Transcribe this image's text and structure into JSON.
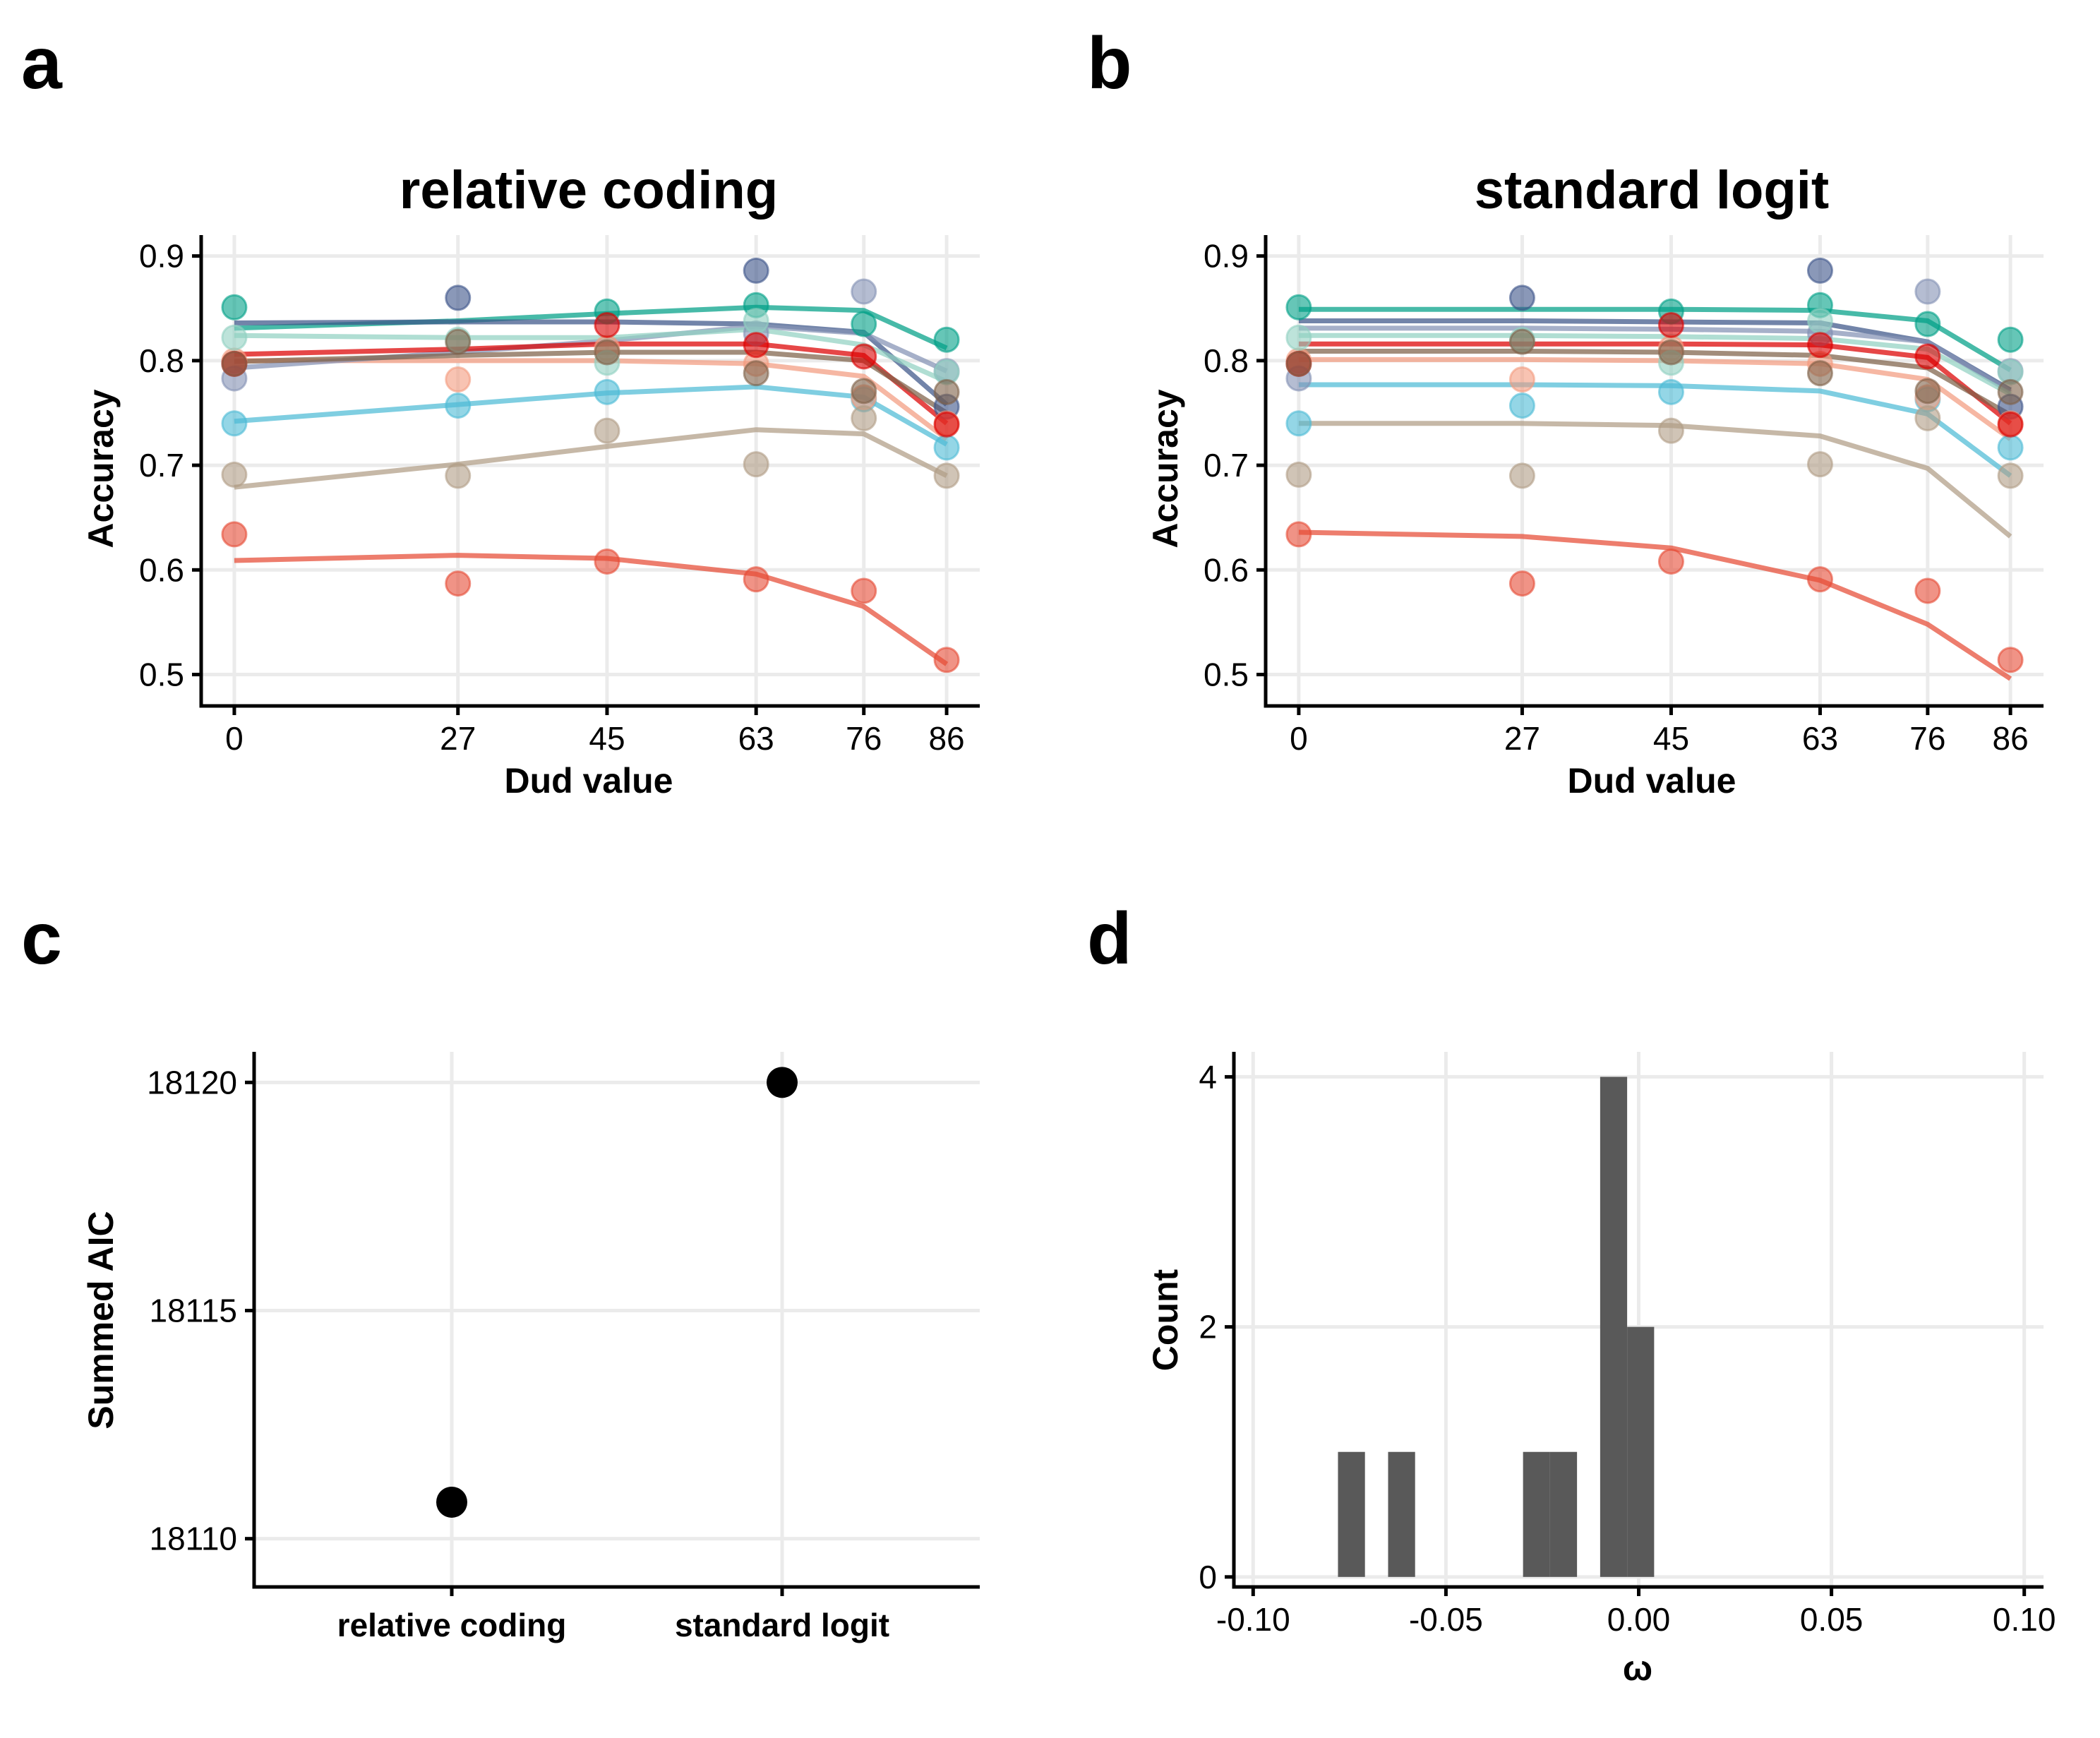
{
  "panels": {
    "a": {
      "letter": "a",
      "title": "relative coding",
      "xlabel": "Dud value",
      "ylabel": "Accuracy"
    },
    "b": {
      "letter": "b",
      "title": "standard logit",
      "xlabel": "Dud value",
      "ylabel": "Accuracy"
    },
    "c": {
      "letter": "c",
      "title": "",
      "xlabel": "",
      "ylabel": "Summed AIC"
    },
    "d": {
      "letter": "d",
      "title": "",
      "xlabel": "ω",
      "ylabel": "Count"
    }
  },
  "chart_data": [
    {
      "id": "a",
      "type": "scatter",
      "title": "relative coding",
      "xlabel": "Dud value",
      "ylabel": "Accuracy",
      "x": [
        0,
        27,
        45,
        63,
        76,
        86
      ],
      "xticks": [
        0,
        27,
        45,
        63,
        76,
        86
      ],
      "xlim": [
        -4,
        90
      ],
      "ylim": [
        0.47,
        0.92
      ],
      "yticks": [
        0.5,
        0.6,
        0.7,
        0.8,
        0.9
      ],
      "ytick_labels": [
        "0.5",
        "0.6",
        "0.7",
        "0.8",
        "0.9"
      ],
      "grid": true,
      "series": [
        {
          "color": "#E64B35",
          "points": [
            0.634,
            0.587,
            0.608,
            0.591,
            0.58,
            0.514
          ],
          "fit": [
            0.609,
            0.614,
            0.611,
            0.596,
            0.565,
            0.51
          ]
        },
        {
          "color": "#4DBBD5",
          "points": [
            0.74,
            0.757,
            0.77,
            null,
            0.763,
            0.717
          ],
          "fit": [
            0.742,
            0.758,
            0.769,
            0.775,
            0.765,
            0.72
          ]
        },
        {
          "color": "#00A087",
          "points": [
            0.851,
            null,
            0.847,
            0.853,
            0.835,
            0.82
          ],
          "fit": [
            0.831,
            0.838,
            0.845,
            0.851,
            0.848,
            0.812
          ]
        },
        {
          "color": "#3C5488",
          "points": [
            null,
            0.86,
            null,
            0.886,
            null,
            0.756
          ],
          "fit": [
            0.836,
            0.837,
            0.837,
            0.835,
            0.827,
            0.758
          ]
        },
        {
          "color": "#F39B7F",
          "points": [
            0.8,
            0.782,
            0.812,
            0.797,
            0.765,
            0.74
          ],
          "fit": [
            0.8,
            0.8,
            0.8,
            0.797,
            0.785,
            0.725
          ]
        },
        {
          "color": "#8491B4",
          "points": [
            0.783,
            null,
            null,
            0.826,
            0.866,
            0.79
          ],
          "fit": [
            0.793,
            0.808,
            0.819,
            0.833,
            0.826,
            0.79
          ]
        },
        {
          "color": "#91D1C2",
          "points": [
            0.822,
            0.82,
            0.798,
            0.838,
            null,
            0.789
          ],
          "fit": [
            0.824,
            0.822,
            0.822,
            0.83,
            0.815,
            0.78
          ]
        },
        {
          "color": "#DC0000",
          "points": [
            0.797,
            null,
            0.834,
            0.815,
            0.804,
            0.739
          ],
          "fit": [
            0.806,
            0.811,
            0.816,
            0.816,
            0.805,
            0.74
          ]
        },
        {
          "color": "#7E6148",
          "points": [
            0.797,
            0.818,
            0.808,
            0.788,
            0.771,
            0.77
          ],
          "fit": [
            0.799,
            0.805,
            0.808,
            0.808,
            0.8,
            0.75
          ]
        },
        {
          "color": "#B09C85",
          "points": [
            0.691,
            0.69,
            0.733,
            0.701,
            0.745,
            0.69
          ],
          "fit": [
            0.679,
            0.701,
            0.718,
            0.734,
            0.73,
            0.69
          ]
        }
      ]
    },
    {
      "id": "b",
      "type": "scatter",
      "title": "standard logit",
      "xlabel": "Dud value",
      "ylabel": "Accuracy",
      "x": [
        0,
        27,
        45,
        63,
        76,
        86
      ],
      "xticks": [
        0,
        27,
        45,
        63,
        76,
        86
      ],
      "xlim": [
        -4,
        90
      ],
      "ylim": [
        0.47,
        0.92
      ],
      "yticks": [
        0.5,
        0.6,
        0.7,
        0.8,
        0.9
      ],
      "ytick_labels": [
        "0.5",
        "0.6",
        "0.7",
        "0.8",
        "0.9"
      ],
      "grid": true,
      "series": [
        {
          "color": "#E64B35",
          "points": [
            0.634,
            0.587,
            0.608,
            0.591,
            0.58,
            0.514
          ],
          "fit": [
            0.636,
            0.632,
            0.621,
            0.59,
            0.548,
            0.496
          ]
        },
        {
          "color": "#4DBBD5",
          "points": [
            0.74,
            0.757,
            0.77,
            null,
            0.763,
            0.717
          ],
          "fit": [
            0.777,
            0.777,
            0.776,
            0.771,
            0.749,
            0.69
          ]
        },
        {
          "color": "#00A087",
          "points": [
            0.851,
            null,
            0.847,
            0.853,
            0.835,
            0.82
          ],
          "fit": [
            0.849,
            0.849,
            0.849,
            0.848,
            0.838,
            0.791
          ]
        },
        {
          "color": "#3C5488",
          "points": [
            null,
            0.86,
            null,
            0.886,
            null,
            0.756
          ],
          "fit": [
            0.838,
            0.838,
            0.837,
            0.836,
            0.818,
            0.772
          ]
        },
        {
          "color": "#F39B7F",
          "points": [
            0.8,
            0.782,
            0.812,
            0.797,
            0.765,
            0.74
          ],
          "fit": [
            0.801,
            0.801,
            0.8,
            0.797,
            0.782,
            0.725
          ]
        },
        {
          "color": "#8491B4",
          "points": [
            0.783,
            null,
            null,
            0.826,
            0.866,
            0.79
          ],
          "fit": [
            0.831,
            0.831,
            0.83,
            0.828,
            0.818,
            0.77
          ]
        },
        {
          "color": "#91D1C2",
          "points": [
            0.822,
            0.82,
            0.798,
            0.838,
            null,
            0.789
          ],
          "fit": [
            0.824,
            0.824,
            0.823,
            0.821,
            0.811,
            0.768
          ]
        },
        {
          "color": "#DC0000",
          "points": [
            0.797,
            null,
            0.834,
            0.815,
            0.804,
            0.739
          ],
          "fit": [
            0.816,
            0.816,
            0.816,
            0.815,
            0.803,
            0.74
          ]
        },
        {
          "color": "#7E6148",
          "points": [
            0.797,
            0.818,
            0.808,
            0.788,
            0.771,
            0.77
          ],
          "fit": [
            0.809,
            0.809,
            0.808,
            0.805,
            0.793,
            0.748
          ]
        },
        {
          "color": "#B09C85",
          "points": [
            0.691,
            0.69,
            0.733,
            0.701,
            0.745,
            0.69
          ],
          "fit": [
            0.74,
            0.74,
            0.738,
            0.728,
            0.697,
            0.632
          ]
        }
      ]
    },
    {
      "id": "c",
      "type": "scatter",
      "xlabel": "",
      "ylabel": "Summed AIC",
      "categories": [
        "relative coding",
        "standard logit"
      ],
      "values": [
        18110.8,
        18120
      ],
      "ylim": [
        18109.5,
        18120.5
      ],
      "yticks": [
        18110,
        18115,
        18120
      ],
      "ytick_labels": [
        "18110",
        "18115",
        "18120"
      ],
      "grid": true
    },
    {
      "id": "d",
      "type": "bar",
      "xlabel": "ω",
      "ylabel": "Count",
      "bin_width": 0.007,
      "bins": [
        {
          "start": -0.078,
          "count": 1
        },
        {
          "start": -0.065,
          "count": 1
        },
        {
          "start": -0.03,
          "count": 1
        },
        {
          "start": -0.023,
          "count": 1
        },
        {
          "start": -0.01,
          "count": 4
        },
        {
          "start": -0.003,
          "count": 2
        }
      ],
      "xlim": [
        -0.105,
        0.105
      ],
      "xticks": [
        -0.1,
        -0.05,
        0.0,
        0.05,
        0.1
      ],
      "xtick_labels": [
        "-0.10",
        "-0.05",
        "0.00",
        "0.05",
        "0.10"
      ],
      "ylim": [
        -0.08,
        4.2
      ],
      "yticks": [
        0,
        2,
        4
      ],
      "ytick_labels": [
        "0",
        "2",
        "4"
      ],
      "bar_color": "#595959",
      "grid": true
    }
  ]
}
